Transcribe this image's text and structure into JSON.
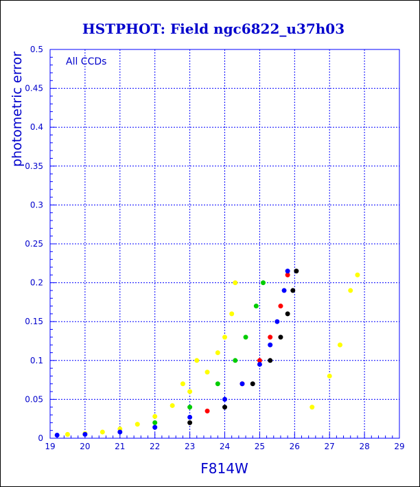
{
  "chart_data": {
    "type": "scatter",
    "title": "HSTPHOT: Field ngc6822_u37h03",
    "annotation": "All CCDs",
    "xlabel": "F814W",
    "ylabel": "photometric error",
    "xlim": [
      19,
      29
    ],
    "ylim": [
      0,
      0.5
    ],
    "x_ticks": [
      "19",
      "20",
      "21",
      "22",
      "23",
      "24",
      "25",
      "26",
      "27",
      "28",
      "29"
    ],
    "y_ticks": [
      "0",
      "0.05",
      "0.1",
      "0.15",
      "0.2",
      "0.25",
      "0.3",
      "0.35",
      "0.4",
      "0.45",
      "0.5"
    ],
    "grid": true,
    "colors": {
      "text": "#0000cc",
      "grid": "#0000ff",
      "axis": "#0000ff"
    },
    "series": [
      {
        "color": "#ffff00",
        "points": [
          [
            19.5,
            0.005
          ],
          [
            20.0,
            0.006
          ],
          [
            20.5,
            0.008
          ],
          [
            21.0,
            0.012
          ],
          [
            21.5,
            0.018
          ],
          [
            22.0,
            0.028
          ],
          [
            22.5,
            0.042
          ],
          [
            23.0,
            0.06
          ],
          [
            23.5,
            0.085
          ],
          [
            23.8,
            0.11
          ],
          [
            24.0,
            0.13
          ],
          [
            24.2,
            0.16
          ],
          [
            24.3,
            0.2
          ],
          [
            23.2,
            0.1
          ],
          [
            22.8,
            0.07
          ],
          [
            26.5,
            0.04
          ],
          [
            27.0,
            0.08
          ],
          [
            27.3,
            0.12
          ],
          [
            27.6,
            0.19
          ],
          [
            27.8,
            0.21
          ]
        ]
      },
      {
        "color": "#00cc00",
        "points": [
          [
            22.0,
            0.02
          ],
          [
            23.0,
            0.04
          ],
          [
            23.8,
            0.07
          ],
          [
            24.3,
            0.1
          ],
          [
            24.6,
            0.13
          ],
          [
            24.9,
            0.17
          ],
          [
            25.1,
            0.2
          ]
        ]
      },
      {
        "color": "#ff0000",
        "points": [
          [
            23.5,
            0.035
          ],
          [
            24.5,
            0.07
          ],
          [
            25.0,
            0.1
          ],
          [
            25.3,
            0.13
          ],
          [
            25.6,
            0.17
          ],
          [
            25.8,
            0.21
          ]
        ]
      },
      {
        "color": "#0000ff",
        "points": [
          [
            19.2,
            0.004
          ],
          [
            20.0,
            0.005
          ],
          [
            21.0,
            0.008
          ],
          [
            22.0,
            0.014
          ],
          [
            23.0,
            0.027
          ],
          [
            24.0,
            0.05
          ],
          [
            24.5,
            0.07
          ],
          [
            25.0,
            0.095
          ],
          [
            25.3,
            0.12
          ],
          [
            25.5,
            0.15
          ],
          [
            25.7,
            0.19
          ],
          [
            25.8,
            0.215
          ]
        ]
      },
      {
        "color": "#000000",
        "points": [
          [
            23.0,
            0.02
          ],
          [
            24.0,
            0.04
          ],
          [
            24.8,
            0.07
          ],
          [
            25.3,
            0.1
          ],
          [
            25.6,
            0.13
          ],
          [
            25.8,
            0.16
          ],
          [
            25.95,
            0.19
          ],
          [
            26.05,
            0.215
          ]
        ]
      }
    ]
  }
}
